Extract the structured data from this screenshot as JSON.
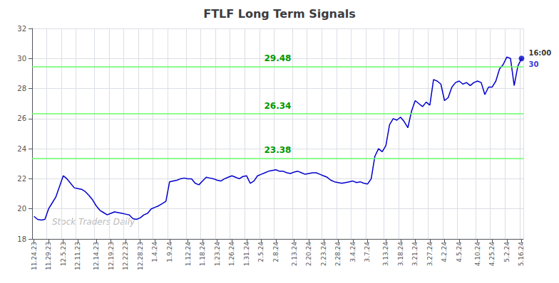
{
  "chart_data": {
    "type": "line",
    "title": "FTLF Long Term Signals",
    "color": "#0000cc",
    "grid": true,
    "ylim": [
      18,
      32
    ],
    "yticks": [
      18,
      20,
      22,
      24,
      26,
      28,
      30,
      32
    ],
    "categories": [
      "11.24.23",
      null,
      null,
      null,
      "11.29.23",
      null,
      null,
      null,
      "12.5.23",
      null,
      null,
      null,
      "12.11.23",
      null,
      null,
      null,
      null,
      "12.14.23",
      null,
      null,
      null,
      "12.19.23",
      null,
      null,
      null,
      "12.22.23",
      null,
      null,
      null,
      "12.28.23",
      null,
      null,
      null,
      "1.4.24",
      null,
      null,
      null,
      "1.9.24",
      null,
      null,
      null,
      null,
      "1.12.24",
      null,
      null,
      null,
      "1.18.24",
      null,
      null,
      null,
      "1.23.24",
      null,
      null,
      null,
      "1.26.24",
      null,
      null,
      null,
      "1.31.24",
      null,
      null,
      null,
      "2.5.24",
      null,
      null,
      null,
      "2.8.24",
      null,
      null,
      null,
      null,
      "2.13.24",
      null,
      null,
      null,
      "2.20.24",
      null,
      null,
      null,
      "2.23.24",
      null,
      null,
      null,
      "2.28.24",
      null,
      null,
      null,
      "3.4.24",
      null,
      null,
      null,
      "3.7.24",
      null,
      null,
      null,
      null,
      "3.13.24",
      null,
      null,
      null,
      "3.18.24",
      null,
      null,
      null,
      "3.21.24",
      null,
      null,
      null,
      "3.27.24",
      null,
      null,
      null,
      "4.2.24",
      null,
      null,
      null,
      "4.5.24",
      null,
      null,
      null,
      null,
      "4.10.24",
      null,
      null,
      null,
      "4.25.24",
      null,
      null,
      null,
      "5.2.24",
      null,
      null,
      null,
      "5.16.24"
    ],
    "values": [
      19.5,
      19.3,
      19.25,
      19.3,
      20.0,
      20.4,
      20.8,
      21.5,
      22.2,
      22.0,
      21.7,
      21.4,
      21.35,
      21.3,
      21.15,
      20.9,
      20.6,
      20.2,
      19.9,
      19.75,
      19.6,
      19.7,
      19.8,
      19.75,
      19.7,
      19.65,
      19.6,
      19.35,
      19.3,
      19.4,
      19.6,
      19.7,
      20.0,
      20.1,
      20.2,
      20.35,
      20.5,
      21.8,
      21.85,
      21.9,
      22.0,
      22.05,
      22.0,
      22.0,
      21.7,
      21.6,
      21.85,
      22.1,
      22.05,
      22.0,
      21.9,
      21.85,
      22.0,
      22.1,
      22.2,
      22.1,
      22.0,
      22.15,
      22.2,
      21.7,
      21.85,
      22.2,
      22.3,
      22.4,
      22.5,
      22.55,
      22.6,
      22.5,
      22.5,
      22.4,
      22.35,
      22.45,
      22.5,
      22.4,
      22.3,
      22.35,
      22.4,
      22.4,
      22.3,
      22.2,
      22.1,
      21.9,
      21.8,
      21.75,
      21.7,
      21.75,
      21.8,
      21.85,
      21.75,
      21.8,
      21.7,
      21.65,
      22.0,
      23.5,
      24.0,
      23.8,
      24.2,
      25.6,
      26.0,
      25.9,
      26.1,
      25.8,
      25.4,
      26.5,
      27.2,
      27.0,
      26.8,
      27.1,
      26.9,
      28.6,
      28.5,
      28.3,
      27.2,
      27.4,
      28.1,
      28.4,
      28.5,
      28.3,
      28.4,
      28.2,
      28.4,
      28.5,
      28.4,
      27.6,
      28.1,
      28.1,
      28.5,
      29.3,
      29.6,
      30.1,
      30.0,
      28.2,
      29.5,
      30.0
    ],
    "hlines": [
      {
        "value": 23.38,
        "label": "23.38",
        "color": "#66ff66"
      },
      {
        "value": 26.34,
        "label": "26.34",
        "color": "#66ff66"
      },
      {
        "value": 29.48,
        "label": "29.48",
        "color": "#66ff66"
      }
    ],
    "last_point": {
      "time_label": "16:00",
      "price_label": "30"
    },
    "watermark": "Stock Traders Daily"
  }
}
